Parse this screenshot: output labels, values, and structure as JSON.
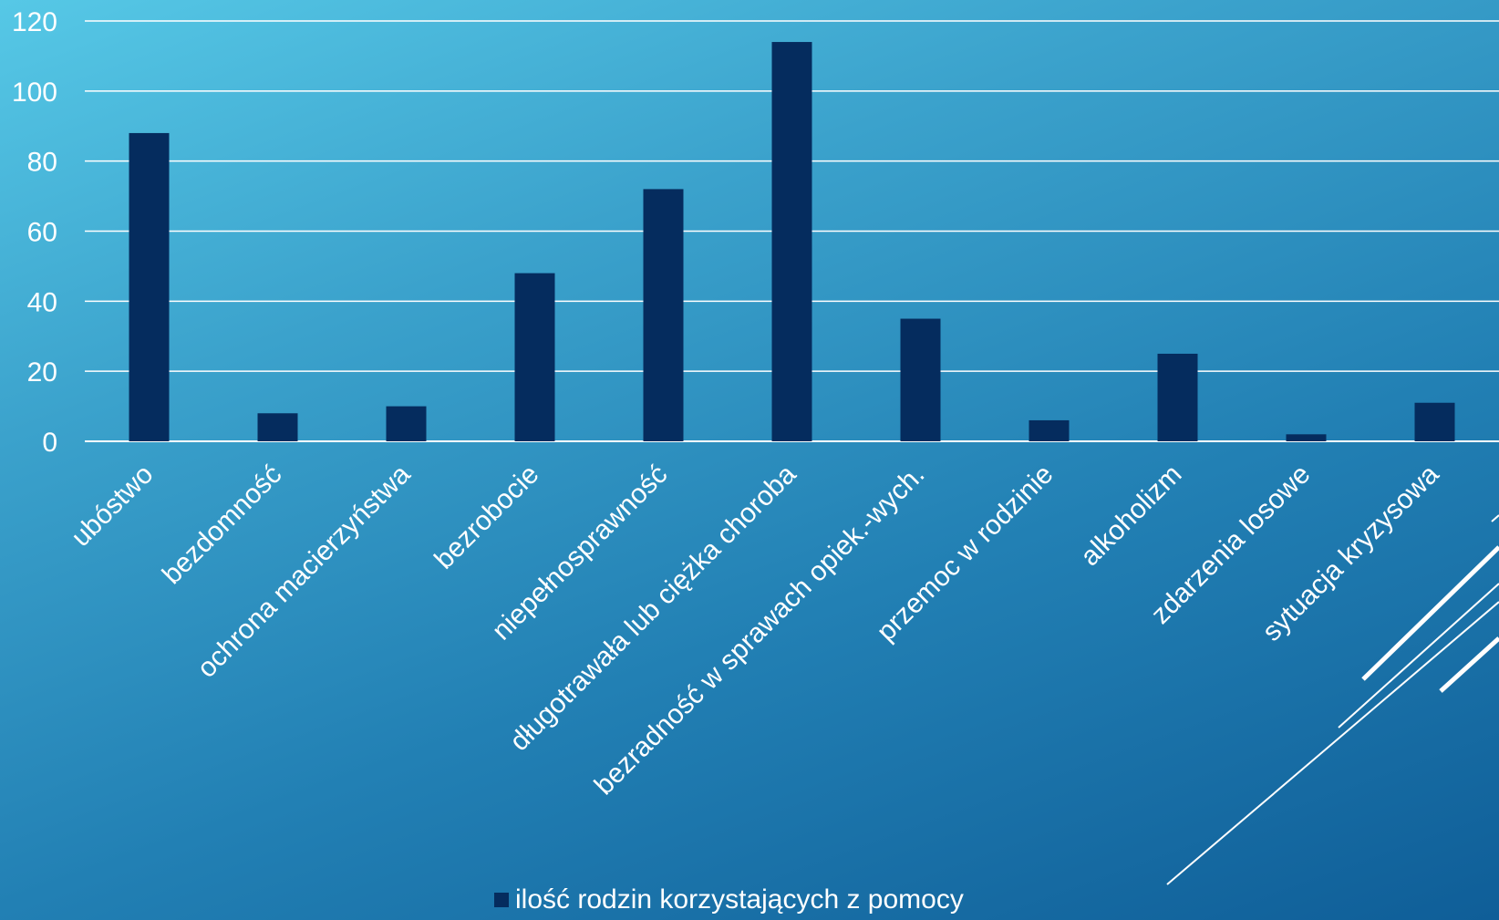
{
  "chart_data": {
    "type": "bar",
    "categories": [
      "ubóstwo",
      "bezdomność",
      "ochrona macierzyństwa",
      "bezrobocie",
      "niepełnosprawność",
      "długotrawała lub ciężka choroba",
      "bezradność w sprawach opiek.-wych.",
      "przemoc w rodzinie",
      "alkoholizm",
      "zdarzenia losowe",
      "sytuacja kryzysowa"
    ],
    "series": [
      {
        "name": "ilość rodzin korzystających z pomocy",
        "values": [
          88,
          8,
          10,
          48,
          72,
          114,
          35,
          6,
          25,
          2,
          11
        ],
        "color": "#052c5e"
      }
    ],
    "ylim": [
      0,
      120
    ],
    "yticks": [
      0,
      20,
      40,
      60,
      80,
      100,
      120
    ],
    "grid": true,
    "legend_position": "bottom"
  },
  "colors": {
    "bar": "#052c5e",
    "gridline": "#ffffff",
    "text": "#ffffff"
  }
}
